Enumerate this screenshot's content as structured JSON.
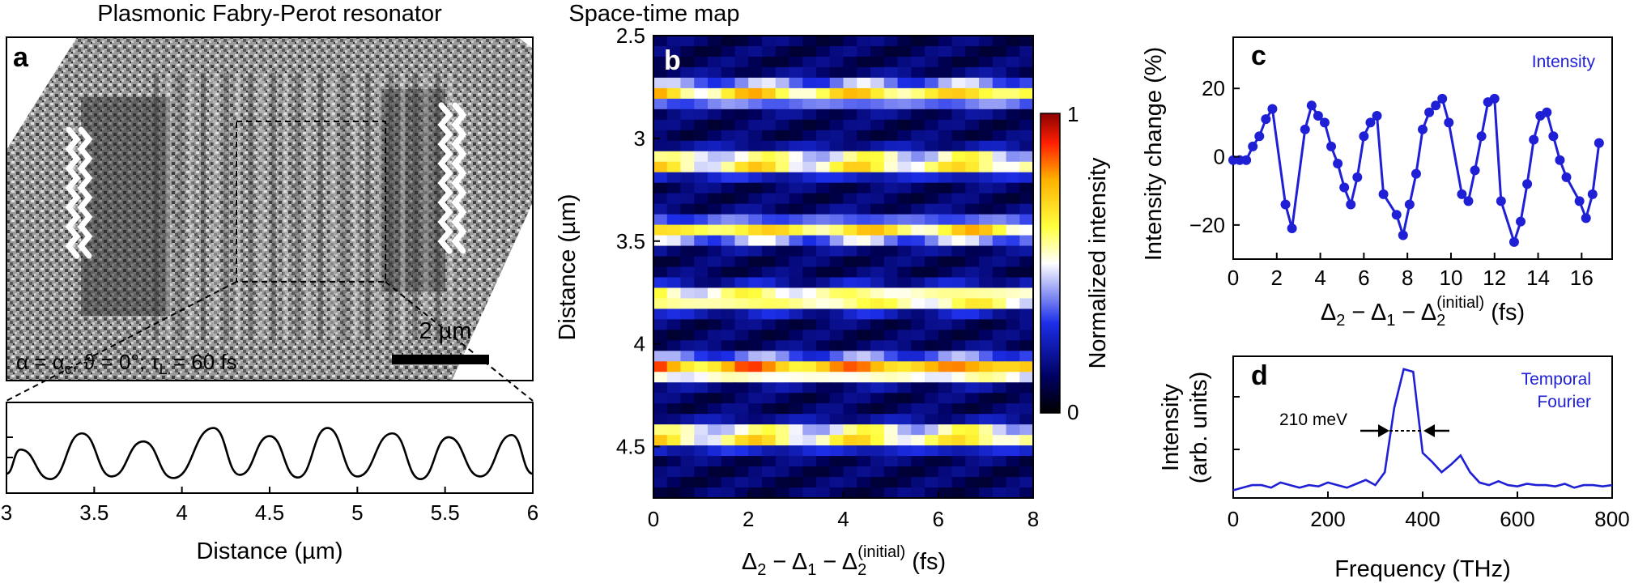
{
  "chart_data": [
    {
      "panel": "a",
      "type": "image",
      "title": "Plasmonic Fabry-Perot resonator",
      "scale_bar_label": "2 µm",
      "condition_label": "α = α",
      "condition_sub": "c",
      "condition_rest": "; ϑ = 0°; τ",
      "condition_sub2": "L",
      "condition_end": " = 60 fs"
    },
    {
      "panel": "a-profile",
      "type": "line",
      "xlabel": "Distance (µm)",
      "xlim": [
        3,
        6
      ],
      "xticks": [
        "3",
        "3.5",
        "4",
        "4.5",
        "5",
        "5.5",
        "6"
      ],
      "peaks_x": [
        3.08,
        3.43,
        3.78,
        4.18,
        4.5,
        4.83,
        5.2,
        5.52,
        5.88
      ],
      "troughs_x": [
        3.25,
        3.6,
        3.95,
        4.33,
        4.66,
        5.0,
        5.36,
        5.7
      ],
      "x": [
        3.0,
        3.08,
        3.25,
        3.43,
        3.6,
        3.78,
        3.95,
        4.18,
        4.33,
        4.5,
        4.66,
        4.83,
        5.0,
        5.2,
        5.36,
        5.52,
        5.7,
        5.88,
        6.0
      ],
      "values": [
        0.1,
        0.55,
        0.0,
        0.85,
        0.05,
        0.7,
        0.02,
        0.95,
        0.08,
        0.8,
        0.03,
        0.95,
        0.05,
        0.85,
        0.0,
        0.78,
        0.05,
        0.82,
        0.1
      ],
      "ylim": [
        -0.2,
        1.2
      ]
    },
    {
      "panel": "b",
      "type": "heatmap",
      "title": "Space-time map",
      "xlabel_main": "Δ",
      "xlabel": "Δ2 − Δ1 − Δ2(initial) (fs)",
      "ylabel": "Distance (µm)",
      "xlim": [
        0,
        8
      ],
      "ylim": [
        2.5,
        4.75
      ],
      "xticks": [
        "0",
        "2",
        "4",
        "6",
        "8"
      ],
      "yticks": [
        "2.5",
        "3",
        "3.5",
        "4",
        "4.5"
      ],
      "bright_bands_y": [
        2.78,
        3.12,
        3.45,
        3.78,
        4.12,
        4.45
      ],
      "colorbar_label": "Normalized intensity",
      "colorbar_ticks": [
        "1",
        "0"
      ]
    },
    {
      "panel": "c",
      "type": "line",
      "legend": "Intensity",
      "ylabel": "Intensity change (%)",
      "xlabel": "Δ2 − Δ1 − Δ2(initial) (fs)",
      "xlim": [
        0,
        17.4
      ],
      "ylim": [
        -30,
        35
      ],
      "xticks": [
        "0",
        "2",
        "4",
        "6",
        "8",
        "10",
        "12",
        "14",
        "16"
      ],
      "yticks": [
        "20",
        "0",
        "−20"
      ],
      "x": [
        0,
        0.3,
        0.6,
        0.9,
        1.2,
        1.5,
        1.8,
        2.4,
        2.7,
        3.3,
        3.6,
        3.9,
        4.2,
        4.5,
        4.8,
        5.1,
        5.4,
        5.7,
        6.0,
        6.3,
        6.6,
        6.9,
        7.5,
        7.8,
        8.1,
        8.4,
        8.7,
        9.0,
        9.3,
        9.6,
        9.9,
        10.5,
        10.8,
        11.1,
        11.4,
        11.7,
        12.0,
        12.3,
        12.9,
        13.2,
        13.5,
        13.8,
        14.1,
        14.4,
        14.7,
        15.0,
        15.3,
        15.9,
        16.2,
        16.5,
        16.8
      ],
      "values": [
        -1,
        -1,
        -1,
        3,
        6,
        11,
        14,
        -14,
        -21,
        8,
        15,
        12,
        10,
        3,
        -2,
        -9,
        -14,
        -6,
        6,
        10,
        12,
        -11,
        -17,
        -23,
        -14,
        -5,
        8,
        13,
        15,
        17,
        10,
        -11,
        -13,
        -4,
        6,
        16,
        17,
        -13,
        -25,
        -19,
        -8,
        5,
        12,
        13,
        6,
        -1,
        -6,
        -13,
        -18,
        -11,
        4
      ]
    },
    {
      "panel": "d",
      "type": "line",
      "legend": "Temporal Fourier",
      "legend_lines": [
        "Temporal",
        "Fourier"
      ],
      "ylabel_lines": [
        "Intensity",
        "(arb. units)"
      ],
      "xlabel": "Frequency (THz)",
      "xlim": [
        0,
        800
      ],
      "ylim": [
        0,
        1.1
      ],
      "xticks": [
        "0",
        "200",
        "400",
        "600",
        "800"
      ],
      "annotation": "210 meV",
      "x": [
        0,
        20,
        40,
        60,
        80,
        100,
        120,
        140,
        160,
        180,
        200,
        220,
        240,
        260,
        280,
        300,
        320,
        340,
        360,
        380,
        400,
        420,
        440,
        460,
        480,
        500,
        520,
        540,
        560,
        580,
        600,
        620,
        640,
        660,
        680,
        700,
        720,
        740,
        760,
        780,
        800
      ],
      "values": [
        0.06,
        0.08,
        0.1,
        0.1,
        0.08,
        0.12,
        0.1,
        0.08,
        0.1,
        0.09,
        0.12,
        0.1,
        0.08,
        0.11,
        0.14,
        0.1,
        0.2,
        0.7,
        1.0,
        0.98,
        0.35,
        0.28,
        0.2,
        0.26,
        0.33,
        0.2,
        0.12,
        0.1,
        0.13,
        0.1,
        0.09,
        0.11,
        0.1,
        0.1,
        0.09,
        0.11,
        0.08,
        0.1,
        0.1,
        0.09,
        0.1
      ]
    }
  ]
}
